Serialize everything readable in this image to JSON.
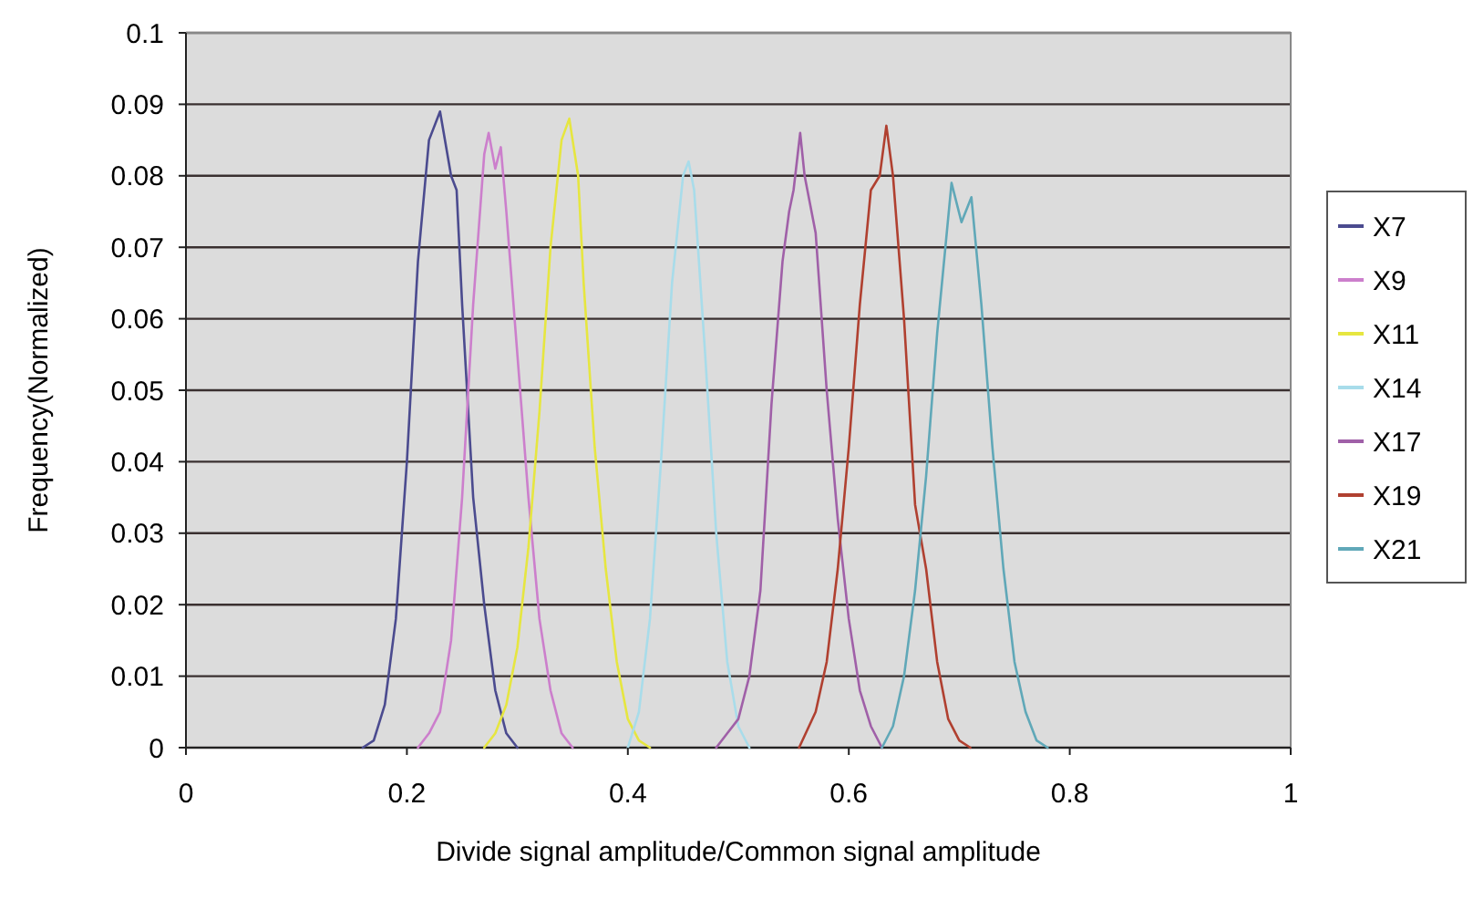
{
  "chart_data": {
    "type": "line",
    "xlabel": "Divide signal amplitude/Common signal amplitude",
    "ylabel": "Frequency(Normalized)",
    "xlim": [
      0,
      1
    ],
    "xticks": [
      0,
      0.2,
      0.4,
      0.6,
      0.8,
      1
    ],
    "ylim": [
      0,
      0.1
    ],
    "yticks": [
      0,
      0.01,
      0.02,
      0.03,
      0.04,
      0.05,
      0.06,
      0.07,
      0.08,
      0.09,
      0.1
    ],
    "grid": "y",
    "legend": "right",
    "marker": "none",
    "line_style": "solid",
    "series": [
      {
        "name": "X7",
        "color": "#4b4b8f",
        "x": [
          0.16,
          0.17,
          0.18,
          0.19,
          0.2,
          0.21,
          0.22,
          0.23,
          0.24,
          0.245,
          0.25,
          0.26,
          0.27,
          0.28,
          0.29,
          0.3
        ],
        "values": [
          0,
          0.001,
          0.006,
          0.018,
          0.04,
          0.068,
          0.085,
          0.089,
          0.08,
          0.078,
          0.062,
          0.035,
          0.02,
          0.008,
          0.002,
          0
        ]
      },
      {
        "name": "X9",
        "color": "#cc7fcc",
        "x": [
          0.21,
          0.22,
          0.23,
          0.24,
          0.25,
          0.26,
          0.27,
          0.274,
          0.28,
          0.285,
          0.29,
          0.3,
          0.31,
          0.32,
          0.33,
          0.34,
          0.35
        ],
        "values": [
          0,
          0.002,
          0.005,
          0.015,
          0.035,
          0.062,
          0.083,
          0.086,
          0.081,
          0.084,
          0.075,
          0.055,
          0.035,
          0.018,
          0.008,
          0.002,
          0
        ]
      },
      {
        "name": "X11",
        "color": "#e6e640",
        "x": [
          0.27,
          0.28,
          0.29,
          0.3,
          0.31,
          0.32,
          0.33,
          0.34,
          0.347,
          0.355,
          0.36,
          0.37,
          0.38,
          0.39,
          0.4,
          0.41,
          0.42
        ],
        "values": [
          0,
          0.002,
          0.006,
          0.014,
          0.028,
          0.047,
          0.07,
          0.085,
          0.088,
          0.08,
          0.065,
          0.042,
          0.025,
          0.012,
          0.004,
          0.001,
          0
        ]
      },
      {
        "name": "X14",
        "color": "#a8dcea",
        "x": [
          0.4,
          0.41,
          0.42,
          0.43,
          0.44,
          0.45,
          0.455,
          0.46,
          0.47,
          0.48,
          0.49,
          0.5,
          0.51
        ],
        "values": [
          0,
          0.005,
          0.018,
          0.04,
          0.065,
          0.08,
          0.082,
          0.078,
          0.055,
          0.03,
          0.012,
          0.003,
          0
        ]
      },
      {
        "name": "X17",
        "color": "#a060a8",
        "x": [
          0.48,
          0.49,
          0.5,
          0.51,
          0.52,
          0.53,
          0.54,
          0.546,
          0.55,
          0.556,
          0.56,
          0.57,
          0.58,
          0.59,
          0.6,
          0.61,
          0.62,
          0.63
        ],
        "values": [
          0,
          0.002,
          0.004,
          0.01,
          0.022,
          0.048,
          0.068,
          0.075,
          0.078,
          0.086,
          0.08,
          0.072,
          0.05,
          0.032,
          0.018,
          0.008,
          0.003,
          0
        ]
      },
      {
        "name": "X19",
        "color": "#b04030",
        "x": [
          0.555,
          0.57,
          0.58,
          0.59,
          0.6,
          0.61,
          0.62,
          0.628,
          0.634,
          0.64,
          0.65,
          0.66,
          0.67,
          0.68,
          0.69,
          0.7,
          0.71
        ],
        "values": [
          0,
          0.005,
          0.012,
          0.025,
          0.042,
          0.062,
          0.078,
          0.08,
          0.087,
          0.08,
          0.06,
          0.034,
          0.025,
          0.012,
          0.004,
          0.001,
          0
        ]
      },
      {
        "name": "X21",
        "color": "#60a8b8",
        "x": [
          0.63,
          0.64,
          0.65,
          0.66,
          0.67,
          0.68,
          0.693,
          0.702,
          0.711,
          0.72,
          0.73,
          0.74,
          0.75,
          0.76,
          0.77,
          0.78
        ],
        "values": [
          0,
          0.003,
          0.01,
          0.022,
          0.038,
          0.058,
          0.079,
          0.0735,
          0.077,
          0.062,
          0.042,
          0.025,
          0.012,
          0.005,
          0.001,
          0
        ]
      }
    ]
  }
}
